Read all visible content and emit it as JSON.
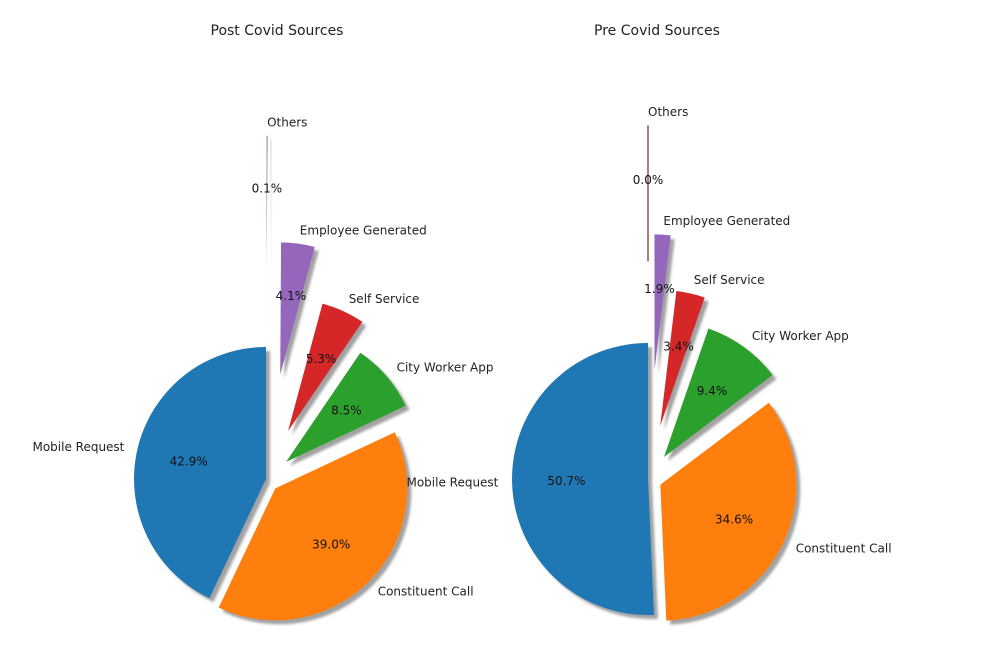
{
  "chart_data": [
    {
      "type": "pie",
      "title": "Post Covid Sources",
      "start_angle_deg": 90,
      "direction": "counterclockwise",
      "shadow": true,
      "slices": [
        {
          "label": "Mobile Request",
          "value": 42.9,
          "pct_label": "42.9%",
          "color": "#1f77b4",
          "explode": 0.0
        },
        {
          "label": "Constituent Call",
          "value": 39.0,
          "pct_label": "39.0%",
          "color": "#ff7f0e",
          "explode": 0.1
        },
        {
          "label": "City Worker App",
          "value": 8.5,
          "pct_label": "8.5%",
          "color": "#2ca02c",
          "explode": 0.2
        },
        {
          "label": "Self Service",
          "value": 5.3,
          "pct_label": "5.3%",
          "color": "#d62728",
          "explode": 0.4
        },
        {
          "label": "Employee Generated",
          "value": 4.1,
          "pct_label": "4.1%",
          "color": "#9467bd",
          "explode": 0.8
        },
        {
          "label": "Others",
          "value": 0.1,
          "pct_label": "0.1%",
          "color": "#8c564b",
          "explode": 1.6
        }
      ]
    },
    {
      "type": "pie",
      "title": "Pre Covid Sources",
      "start_angle_deg": 90,
      "direction": "counterclockwise",
      "shadow": true,
      "slices": [
        {
          "label": "Mobile Request",
          "value": 50.7,
          "pct_label": "50.7%",
          "color": "#1f77b4",
          "explode": 0.0
        },
        {
          "label": "Constituent Call",
          "value": 34.6,
          "pct_label": "34.6%",
          "color": "#ff7f0e",
          "explode": 0.1
        },
        {
          "label": "City Worker App",
          "value": 9.4,
          "pct_label": "9.4%",
          "color": "#2ca02c",
          "explode": 0.2
        },
        {
          "label": "Self Service",
          "value": 3.4,
          "pct_label": "3.4%",
          "color": "#d62728",
          "explode": 0.4
        },
        {
          "label": "Employee Generated",
          "value": 1.9,
          "pct_label": "1.9%",
          "color": "#9467bd",
          "explode": 0.8
        },
        {
          "label": "Others",
          "value": 0.0,
          "pct_label": "0.0%",
          "color": "#8c564b",
          "explode": 1.6
        }
      ]
    }
  ]
}
